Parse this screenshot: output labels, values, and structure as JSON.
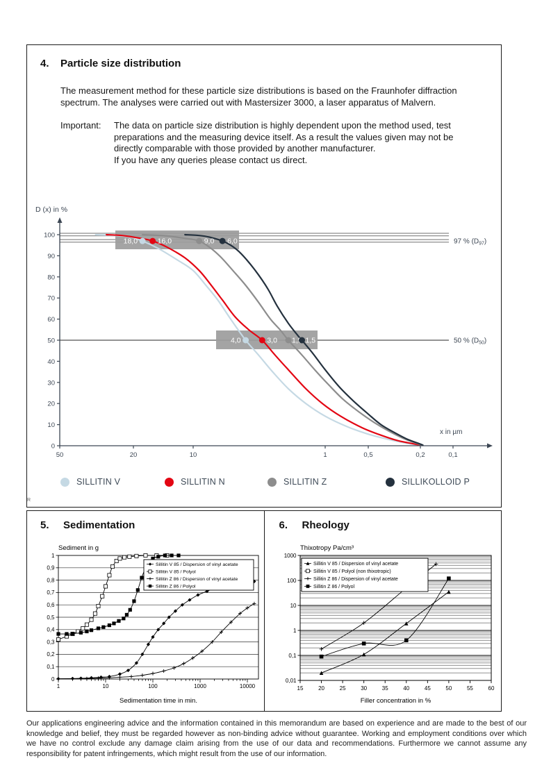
{
  "document": {
    "section4": {
      "number": "4.",
      "title": "Particle size distribution",
      "intro": "The measurement method for these particle size distributions is based on the Fraunhofer diffraction spectrum. The analyses were carried out with Mastersizer 3000, a laser apparatus of Malvern.",
      "important_label": "Important:",
      "important_text_1": "The data on particle size distribution is highly dependent upon the method used, test preparations and the measuring device itself. As a result the values given may not be directly comparable with those provided by another manufacturer.",
      "important_text_2": "If you have any queries please contact us direct."
    },
    "section5": {
      "number": "5.",
      "title": "Sedimentation"
    },
    "section6": {
      "number": "6.",
      "title": "Rheology"
    },
    "r_mark": "R",
    "footer": "Our applications engineering advice and the information contained in this memorandum are based on experience and are made to the best of our knowledge and belief, they must be regarded however as non-binding advice without guarantee. Working and employment conditions over which we have no control exclude any damage claim arising from the use of our data and recommendations. Furthermore we cannot assume any responsibility for patent infringements, which might result from the use of our information."
  },
  "legend_particle": {
    "items": [
      {
        "label": "SILLITIN V",
        "color": "#c5d9e4"
      },
      {
        "label": "SILLITIN N",
        "color": "#e30613"
      },
      {
        "label": "SILLITIN Z",
        "color": "#8d8d8d"
      },
      {
        "label": "SILLIKOLLOID P",
        "color": "#24313e"
      }
    ]
  },
  "chart_data": [
    {
      "id": "particle_size_distribution",
      "type": "line",
      "title": "",
      "ylabel": "D (x) in %",
      "xlabel": "x in µm",
      "x_scale": "log_reversed",
      "x_ticks": [
        50,
        20,
        10,
        1,
        0.5,
        0.2,
        0.1
      ],
      "x_tick_labels": [
        "50",
        "20",
        "10",
        "1",
        "0,5",
        "0,2",
        "0,1"
      ],
      "y_ticks": [
        0,
        10,
        20,
        30,
        40,
        50,
        60,
        70,
        80,
        90,
        100
      ],
      "ylim": [
        0,
        100
      ],
      "grid": false,
      "ref_lines": [
        {
          "value": 97,
          "prefix": "97 % (D",
          "sub": "97",
          "suffix": ")"
        },
        {
          "value": 50,
          "prefix": "50 % (D",
          "sub": "50",
          "suffix": ")"
        }
      ],
      "series": [
        {
          "name": "SILLITIN V",
          "color": "#c5d9e4",
          "d97_label": "18,0",
          "d50_label": "4,0",
          "d97": 18.0,
          "d50": 4.0,
          "points": [
            [
              32,
              100
            ],
            [
              26,
              99.7
            ],
            [
              21,
              99
            ],
            [
              18,
              97
            ],
            [
              15,
              93.5
            ],
            [
              12,
              88
            ],
            [
              10,
              83
            ],
            [
              8,
              76
            ],
            [
              6.5,
              69
            ],
            [
              5.2,
              60
            ],
            [
              4,
              50
            ],
            [
              3.2,
              43
            ],
            [
              2.5,
              35
            ],
            [
              1.9,
              27
            ],
            [
              1.4,
              20
            ],
            [
              1.0,
              14
            ],
            [
              0.7,
              9
            ],
            [
              0.5,
              5.5
            ],
            [
              0.35,
              3
            ],
            [
              0.26,
              1.3
            ],
            [
              0.2,
              0.2
            ]
          ]
        },
        {
          "name": "SILLITIN N",
          "color": "#e30613",
          "d97_label": "16,0",
          "d50_label": "3,0",
          "d97": 16.0,
          "d50": 3.0,
          "points": [
            [
              28,
              100
            ],
            [
              23,
              99.6
            ],
            [
              19,
              98.5
            ],
            [
              16,
              97
            ],
            [
              13.5,
              94
            ],
            [
              11,
              89
            ],
            [
              9,
              83
            ],
            [
              7.5,
              77
            ],
            [
              6,
              69
            ],
            [
              4.8,
              61
            ],
            [
              3.8,
              55
            ],
            [
              3,
              50
            ],
            [
              2.4,
              43
            ],
            [
              1.9,
              36
            ],
            [
              1.4,
              27
            ],
            [
              1.05,
              20
            ],
            [
              0.78,
              14
            ],
            [
              0.55,
              8.5
            ],
            [
              0.4,
              5
            ],
            [
              0.3,
              2.5
            ],
            [
              0.22,
              0.8
            ],
            [
              0.2,
              0.3
            ]
          ]
        },
        {
          "name": "SILLITIN Z",
          "color": "#8d8d8d",
          "d97_label": "9,0",
          "d50_label": "1,9",
          "d97": 9.0,
          "d50": 1.9,
          "points": [
            [
              18,
              100
            ],
            [
              14,
              99.5
            ],
            [
              11,
              98.3
            ],
            [
              9,
              97
            ],
            [
              7.5,
              94
            ],
            [
              6.2,
              89.5
            ],
            [
              5,
              83
            ],
            [
              4,
              76
            ],
            [
              3.2,
              68
            ],
            [
              2.6,
              60
            ],
            [
              2.2,
              55
            ],
            [
              1.9,
              50
            ],
            [
              1.5,
              43
            ],
            [
              1.2,
              36
            ],
            [
              0.95,
              29
            ],
            [
              0.75,
              22
            ],
            [
              0.58,
              16
            ],
            [
              0.45,
              11
            ],
            [
              0.35,
              7
            ],
            [
              0.27,
              3.5
            ],
            [
              0.21,
              1
            ],
            [
              0.19,
              0.3
            ]
          ]
        },
        {
          "name": "SILLIKOLLOID P",
          "color": "#24313e",
          "d97_label": "6,0",
          "d50_label": "1,5",
          "d97": 6.0,
          "d50": 1.5,
          "points": [
            [
              11,
              100
            ],
            [
              9,
              99.6
            ],
            [
              7.5,
              98.8
            ],
            [
              6,
              97
            ],
            [
              5.2,
              95
            ],
            [
              4.5,
              92
            ],
            [
              3.8,
              87
            ],
            [
              3.2,
              81
            ],
            [
              2.7,
              74
            ],
            [
              2.3,
              66
            ],
            [
              1.9,
              58
            ],
            [
              1.6,
              52
            ],
            [
              1.5,
              50
            ],
            [
              1.25,
              44
            ],
            [
              1.0,
              36
            ],
            [
              0.8,
              28
            ],
            [
              0.63,
              21
            ],
            [
              0.5,
              15
            ],
            [
              0.4,
              10
            ],
            [
              0.31,
              6
            ],
            [
              0.25,
              3
            ],
            [
              0.2,
              0.8
            ],
            [
              0.19,
              0.3
            ]
          ]
        }
      ]
    },
    {
      "id": "sedimentation",
      "type": "line",
      "title": "Sediment in g",
      "xlabel": "Sedimentation time in min.",
      "x_scale": "log",
      "xlim": [
        1,
        17000
      ],
      "ylim": [
        0,
        1
      ],
      "x_ticks": [
        1,
        10,
        100,
        1000,
        10000
      ],
      "x_tick_labels": [
        "1",
        "10",
        "100",
        "1000",
        "10000"
      ],
      "y_ticks": [
        0,
        0.1,
        0.2,
        0.3,
        0.4,
        0.5,
        0.6,
        0.7,
        0.8,
        0.9,
        1
      ],
      "y_tick_labels": [
        "0",
        "0,1",
        "0,2",
        "0,3",
        "0,4",
        "0,5",
        "0,6",
        "0,7",
        "0,8",
        "0,9",
        "1"
      ],
      "grid": true,
      "legend_position": "top-right",
      "series": [
        {
          "name": "Sillitin V 85 / Dispersion of vinyl acetate",
          "marker": "diamond",
          "points": [
            [
              1,
              0.002
            ],
            [
              2,
              0.004
            ],
            [
              3,
              0.006
            ],
            [
              5,
              0.01
            ],
            [
              8,
              0.015
            ],
            [
              12,
              0.02
            ],
            [
              20,
              0.04
            ],
            [
              30,
              0.07
            ],
            [
              45,
              0.13
            ],
            [
              60,
              0.2
            ],
            [
              80,
              0.28
            ],
            [
              100,
              0.34
            ],
            [
              130,
              0.4
            ],
            [
              170,
              0.45
            ],
            [
              220,
              0.5
            ],
            [
              300,
              0.55
            ],
            [
              420,
              0.6
            ],
            [
              600,
              0.64
            ],
            [
              900,
              0.68
            ],
            [
              1400,
              0.71
            ],
            [
              2200,
              0.74
            ],
            [
              3500,
              0.76
            ],
            [
              6000,
              0.775
            ],
            [
              10000,
              0.785
            ],
            [
              14000,
              0.79
            ]
          ]
        },
        {
          "name": "Sillitin V 85 / Polyol",
          "marker": "open-square",
          "points": [
            [
              1,
              0.32
            ],
            [
              1.5,
              0.345
            ],
            [
              2,
              0.365
            ],
            [
              2.6,
              0.385
            ],
            [
              3.3,
              0.41
            ],
            [
              4,
              0.44
            ],
            [
              5,
              0.48
            ],
            [
              6,
              0.53
            ],
            [
              7,
              0.59
            ],
            [
              8.5,
              0.67
            ],
            [
              10,
              0.75
            ],
            [
              12,
              0.84
            ],
            [
              14,
              0.91
            ],
            [
              17,
              0.955
            ],
            [
              20,
              0.975
            ],
            [
              25,
              0.985
            ],
            [
              32,
              0.99
            ],
            [
              45,
              0.995
            ],
            [
              70,
              1.0
            ],
            [
              120,
              1.0
            ],
            [
              200,
              1.0
            ]
          ]
        },
        {
          "name": "Sillitin Z 86 / Dispersion of vinyl acetate",
          "marker": "plus",
          "points": [
            [
              1,
              0.001
            ],
            [
              2,
              0.002
            ],
            [
              4,
              0.004
            ],
            [
              7,
              0.007
            ],
            [
              12,
              0.01
            ],
            [
              20,
              0.015
            ],
            [
              35,
              0.02
            ],
            [
              60,
              0.03
            ],
            [
              100,
              0.045
            ],
            [
              170,
              0.065
            ],
            [
              280,
              0.09
            ],
            [
              450,
              0.125
            ],
            [
              700,
              0.17
            ],
            [
              1100,
              0.225
            ],
            [
              1800,
              0.3
            ],
            [
              2800,
              0.38
            ],
            [
              4500,
              0.46
            ],
            [
              7000,
              0.53
            ],
            [
              10000,
              0.575
            ],
            [
              14000,
              0.61
            ]
          ]
        },
        {
          "name": "Sillitin Z 86 / Polyol",
          "marker": "square",
          "points": [
            [
              1,
              0.365
            ],
            [
              1.5,
              0.365
            ],
            [
              2,
              0.367
            ],
            [
              3,
              0.375
            ],
            [
              4,
              0.385
            ],
            [
              5,
              0.395
            ],
            [
              7,
              0.41
            ],
            [
              9,
              0.42
            ],
            [
              12,
              0.435
            ],
            [
              15,
              0.45
            ],
            [
              19,
              0.47
            ],
            [
              24,
              0.49
            ],
            [
              28,
              0.52
            ],
            [
              33,
              0.56
            ],
            [
              40,
              0.63
            ],
            [
              48,
              0.72
            ],
            [
              58,
              0.82
            ],
            [
              70,
              0.9
            ],
            [
              85,
              0.95
            ],
            [
              100,
              0.975
            ],
            [
              130,
              0.99
            ],
            [
              180,
              1.0
            ],
            [
              250,
              1.0
            ],
            [
              350,
              1.0
            ]
          ]
        }
      ]
    },
    {
      "id": "rheology",
      "type": "line",
      "title": "Thixotropy Pa/cm³",
      "xlabel": "Filler concentration in %",
      "y_scale": "log",
      "xlim": [
        15,
        60
      ],
      "ylim": [
        0.01,
        1000
      ],
      "x_ticks": [
        15,
        20,
        25,
        30,
        35,
        40,
        45,
        50,
        55,
        60
      ],
      "x_tick_labels": [
        "15",
        "20",
        "25",
        "30",
        "35",
        "40",
        "45",
        "50",
        "55",
        "60"
      ],
      "y_ticks": [
        1000,
        100,
        10,
        1,
        0.1,
        0.01
      ],
      "y_tick_labels": [
        "1000",
        "100",
        "10",
        "1",
        "0,1",
        "0,01"
      ],
      "grid": "log-minor",
      "legend_position": "top-left",
      "series": [
        {
          "name": "Sillitin V 85 / Dispersion of vinyl acetate",
          "marker": "triangle",
          "points": [
            [
              20,
              0.02
            ],
            [
              30,
              0.11
            ],
            [
              40,
              1.9
            ],
            [
              50,
              35
            ]
          ]
        },
        {
          "name": "Sillitin V 85 / Polyol (non thixotropic)",
          "marker": "open-square",
          "points": []
        },
        {
          "name": "Sillitin Z 86 / Dispersion of vinyl acetate",
          "marker": "plus",
          "points": [
            [
              20,
              0.18
            ],
            [
              30,
              2
            ],
            [
              40,
              50
            ],
            [
              47,
              450
            ]
          ]
        },
        {
          "name": "Sillitin Z 86 / Polyol",
          "marker": "square",
          "points": [
            [
              20,
              0.09
            ],
            [
              30,
              0.3
            ],
            [
              40,
              0.4
            ],
            [
              50,
              120
            ]
          ]
        }
      ]
    }
  ]
}
